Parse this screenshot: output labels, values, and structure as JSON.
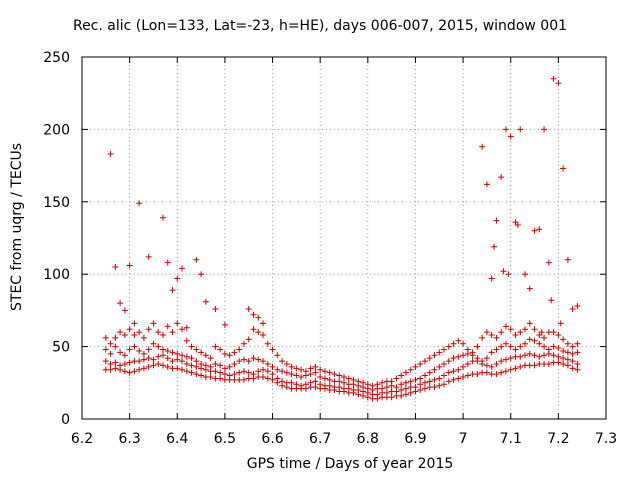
{
  "chart_data": {
    "type": "scatter",
    "title": "Rec. alic (Lon=133, Lat=-23, h=HE), days 006-007, 2015, window 001",
    "xlabel": "GPS time / Days of year 2015",
    "ylabel": "STEC from uqrg / TECUs",
    "xlim": [
      6.2,
      7.3
    ],
    "ylim": [
      0,
      250
    ],
    "xticks": [
      6.2,
      6.3,
      6.4,
      6.5,
      6.6,
      6.7,
      6.8,
      6.9,
      7.0,
      7.1,
      7.2,
      7.3
    ],
    "xtick_labels": [
      "6.2",
      "6.3",
      "6.4",
      "6.5",
      "6.6",
      "6.7",
      "6.8",
      "6.9",
      "7",
      "7.1",
      "7.2",
      "7.3"
    ],
    "yticks": [
      0,
      50,
      100,
      150,
      200,
      250
    ],
    "ytick_labels": [
      "0",
      "50",
      "100",
      "150",
      "200",
      "250"
    ],
    "grid": true,
    "marker": "+",
    "color": "#cc0000",
    "series": [
      {
        "x": [
          6.25,
          6.26,
          6.27,
          6.28,
          6.29,
          6.3,
          6.31,
          6.32,
          6.33,
          6.34,
          6.35,
          6.36,
          6.37,
          6.38,
          6.39,
          6.4,
          6.41,
          6.42,
          6.43,
          6.44,
          6.45,
          6.46,
          6.47,
          6.48,
          6.49,
          6.5,
          6.51,
          6.52,
          6.53,
          6.54,
          6.55,
          6.56,
          6.57,
          6.58,
          6.59,
          6.6,
          6.61,
          6.62,
          6.63,
          6.64,
          6.65,
          6.66,
          6.67,
          6.68,
          6.69,
          6.7,
          6.71,
          6.72,
          6.73,
          6.74,
          6.75,
          6.76,
          6.77,
          6.78,
          6.79,
          6.8,
          6.81,
          6.82,
          6.83,
          6.84,
          6.85,
          6.86,
          6.87,
          6.88,
          6.89,
          6.9,
          6.91,
          6.92,
          6.93,
          6.94,
          6.95,
          6.96,
          6.97,
          6.98,
          6.99,
          7.0,
          7.01,
          7.02,
          7.03,
          7.04,
          7.05,
          7.06,
          7.07,
          7.08,
          7.09,
          7.1,
          7.11,
          7.12,
          7.13,
          7.14,
          7.15,
          7.16,
          7.17,
          7.18,
          7.19,
          7.2,
          7.21,
          7.22,
          7.23,
          7.24
        ],
        "y": [
          34,
          34,
          35,
          34,
          33,
          32,
          33,
          34,
          35,
          36,
          37,
          38,
          37,
          36,
          35,
          35,
          34,
          33,
          32,
          31,
          30,
          29,
          29,
          28,
          28,
          27,
          27,
          27,
          27,
          27,
          28,
          28,
          29,
          29,
          28,
          27,
          25,
          23,
          22,
          21,
          21,
          21,
          21,
          22,
          22,
          21,
          21,
          20,
          20,
          19,
          19,
          18,
          18,
          17,
          16,
          15,
          14,
          14,
          15,
          15,
          15,
          16,
          16,
          17,
          18,
          19,
          20,
          21,
          22,
          22,
          23,
          24,
          26,
          27,
          28,
          29,
          30,
          31,
          31,
          32,
          32,
          31,
          31,
          32,
          33,
          34,
          35,
          36,
          37,
          37,
          37,
          38,
          38,
          38,
          39,
          39,
          38,
          37,
          35,
          34
        ]
      },
      {
        "x": [
          6.25,
          6.26,
          6.27,
          6.28,
          6.29,
          6.3,
          6.31,
          6.32,
          6.33,
          6.34,
          6.35,
          6.36,
          6.37,
          6.38,
          6.39,
          6.4,
          6.41,
          6.42,
          6.43,
          6.44,
          6.45,
          6.46,
          6.47,
          6.48,
          6.49,
          6.5,
          6.51,
          6.52,
          6.53,
          6.54,
          6.55,
          6.56,
          6.57,
          6.58,
          6.59,
          6.6,
          6.61,
          6.62,
          6.63,
          6.64,
          6.65,
          6.66,
          6.67,
          6.68,
          6.69,
          6.7,
          6.71,
          6.72,
          6.73,
          6.74,
          6.75,
          6.76,
          6.77,
          6.78,
          6.79,
          6.8,
          6.81,
          6.82,
          6.83,
          6.84,
          6.85,
          6.86,
          6.87,
          6.88,
          6.89,
          6.9,
          6.91,
          6.92,
          6.93,
          6.94,
          6.95,
          6.96,
          6.97,
          6.98,
          6.99,
          7.0,
          7.01,
          7.02,
          7.03,
          7.04,
          7.05,
          7.06,
          7.07,
          7.08,
          7.09,
          7.1,
          7.11,
          7.12,
          7.13,
          7.14,
          7.15,
          7.16,
          7.17,
          7.18,
          7.19,
          7.2,
          7.21,
          7.22,
          7.23,
          7.24
        ],
        "y": [
          40,
          38,
          39,
          37,
          38,
          39,
          40,
          40,
          41,
          42,
          41,
          43,
          44,
          42,
          40,
          41,
          40,
          38,
          37,
          36,
          35,
          34,
          33,
          33,
          32,
          31,
          30,
          31,
          32,
          33,
          32,
          31,
          33,
          34,
          33,
          31,
          28,
          26,
          25,
          25,
          24,
          23,
          24,
          25,
          26,
          24,
          23,
          23,
          22,
          22,
          21,
          21,
          20,
          20,
          19,
          18,
          17,
          17,
          18,
          18,
          19,
          19,
          20,
          21,
          22,
          22,
          24,
          25,
          26,
          27,
          28,
          30,
          32,
          33,
          34,
          36,
          38,
          40,
          40,
          38,
          37,
          36,
          38,
          40,
          41,
          42,
          43,
          43,
          44,
          45,
          44,
          43,
          44,
          45,
          44,
          43,
          42,
          41,
          40,
          38
        ]
      },
      {
        "x": [
          6.25,
          6.26,
          6.27,
          6.28,
          6.29,
          6.3,
          6.31,
          6.32,
          6.33,
          6.34,
          6.35,
          6.36,
          6.37,
          6.38,
          6.39,
          6.4,
          6.41,
          6.42,
          6.43,
          6.44,
          6.45,
          6.46,
          6.47,
          6.48,
          6.49,
          6.5,
          6.51,
          6.52,
          6.53,
          6.54,
          6.55,
          6.56,
          6.57,
          6.58,
          6.59,
          6.6,
          6.61,
          6.62,
          6.63,
          6.64,
          6.65,
          6.66,
          6.67,
          6.68,
          6.69,
          6.7,
          6.71,
          6.72,
          6.73,
          6.74,
          6.75,
          6.76,
          6.77,
          6.78,
          6.79,
          6.8,
          6.81,
          6.82,
          6.83,
          6.84,
          6.85,
          6.86,
          6.87,
          6.88,
          6.89,
          6.9,
          6.91,
          6.92,
          6.93,
          6.94,
          6.95,
          6.96,
          6.97,
          6.98,
          6.99,
          7.0,
          7.01,
          7.02,
          7.03,
          7.04,
          7.05,
          7.06,
          7.07,
          7.08,
          7.09,
          7.1,
          7.11,
          7.12,
          7.13,
          7.14,
          7.15,
          7.16,
          7.17,
          7.18,
          7.19,
          7.2,
          7.21,
          7.22,
          7.23,
          7.24
        ],
        "y": [
          48,
          45,
          50,
          46,
          44,
          48,
          50,
          47,
          45,
          48,
          52,
          50,
          48,
          47,
          46,
          45,
          44,
          43,
          42,
          40,
          38,
          37,
          36,
          38,
          37,
          35,
          36,
          38,
          40,
          41,
          40,
          42,
          41,
          40,
          38,
          36,
          34,
          33,
          32,
          31,
          30,
          29,
          30,
          31,
          32,
          29,
          28,
          27,
          26,
          26,
          25,
          24,
          24,
          23,
          22,
          21,
          20,
          21,
          21,
          22,
          23,
          22,
          24,
          25,
          26,
          27,
          28,
          30,
          32,
          34,
          36,
          38,
          40,
          42,
          43,
          44,
          45,
          44,
          42,
          40,
          42,
          46,
          48,
          50,
          52,
          50,
          48,
          50,
          52,
          55,
          54,
          52,
          50,
          48,
          50,
          49,
          47,
          46,
          45,
          46
        ]
      },
      {
        "x": [
          6.25,
          6.26,
          6.27,
          6.28,
          6.29,
          6.3,
          6.31,
          6.32,
          6.33,
          6.34,
          6.35,
          6.36,
          6.37,
          6.38,
          6.39,
          6.4,
          6.41,
          6.42,
          6.43,
          6.44,
          6.45,
          6.46,
          6.47,
          6.48,
          6.49,
          6.5,
          6.51,
          6.52,
          6.53,
          6.54,
          6.55,
          6.56,
          6.57,
          6.58,
          6.59,
          6.6,
          6.61,
          6.62,
          6.63,
          6.64,
          6.65,
          6.66,
          6.67,
          6.68,
          6.69,
          6.7,
          6.71,
          6.72,
          6.73,
          6.74,
          6.75,
          6.76,
          6.77,
          6.78,
          6.79,
          6.8,
          6.81,
          6.82,
          6.83,
          6.84,
          6.85,
          6.86,
          6.87,
          6.88,
          6.89,
          6.9,
          6.91,
          6.92,
          6.93,
          6.94,
          6.95,
          6.96,
          6.97,
          6.98,
          6.99,
          7.0,
          7.01,
          7.02,
          7.03,
          7.04,
          7.05,
          7.06,
          7.07,
          7.08,
          7.09,
          7.1,
          7.11,
          7.12,
          7.13,
          7.14,
          7.15,
          7.16,
          7.17,
          7.18,
          7.19,
          7.2,
          7.21,
          7.22,
          7.23,
          7.24
        ],
        "y": [
          56,
          52,
          56,
          60,
          58,
          62,
          58,
          60,
          56,
          62,
          66,
          60,
          58,
          64,
          60,
          66,
          62,
          54,
          50,
          48,
          46,
          44,
          42,
          50,
          48,
          45,
          44,
          46,
          48,
          52,
          55,
          62,
          60,
          58,
          52,
          48,
          44,
          40,
          38,
          36,
          35,
          34,
          33,
          35,
          36,
          34,
          33,
          32,
          31,
          30,
          29,
          28,
          27,
          26,
          25,
          24,
          23,
          24,
          25,
          26,
          26,
          28,
          30,
          32,
          34,
          36,
          38,
          40,
          42,
          44,
          46,
          48,
          50,
          52,
          54,
          52,
          48,
          46,
          50,
          56,
          60,
          58,
          56,
          60,
          64,
          62,
          58,
          60,
          62,
          66,
          62,
          58,
          56,
          60,
          60,
          58,
          55,
          52,
          50,
          52
        ]
      }
    ],
    "outliers": {
      "x": [
        6.26,
        6.27,
        6.28,
        6.29,
        6.3,
        6.31,
        6.32,
        6.34,
        6.37,
        6.38,
        6.39,
        6.4,
        6.41,
        6.42,
        6.44,
        6.45,
        6.46,
        6.48,
        6.5,
        6.55,
        6.56,
        6.57,
        6.58,
        7.04,
        7.05,
        7.06,
        7.07,
        7.08,
        7.09,
        7.1,
        7.11,
        7.12,
        7.13,
        7.14,
        7.15,
        7.16,
        7.17,
        7.18,
        7.19,
        7.2,
        7.21,
        7.22,
        7.23,
        7.24,
        7.065,
        7.085,
        7.095,
        7.115,
        7.165,
        7.185,
        7.205
      ],
      "y": [
        183,
        105,
        80,
        75,
        106,
        66,
        149,
        112,
        139,
        108,
        89,
        97,
        104,
        63,
        110,
        100,
        81,
        76,
        65,
        76,
        72,
        70,
        66,
        188,
        162,
        97,
        137,
        167,
        200,
        195,
        136,
        200,
        100,
        90,
        130,
        131,
        200,
        108,
        235,
        232,
        173,
        110,
        76,
        78,
        119,
        102,
        100,
        134,
        60,
        82,
        66
      ]
    }
  }
}
